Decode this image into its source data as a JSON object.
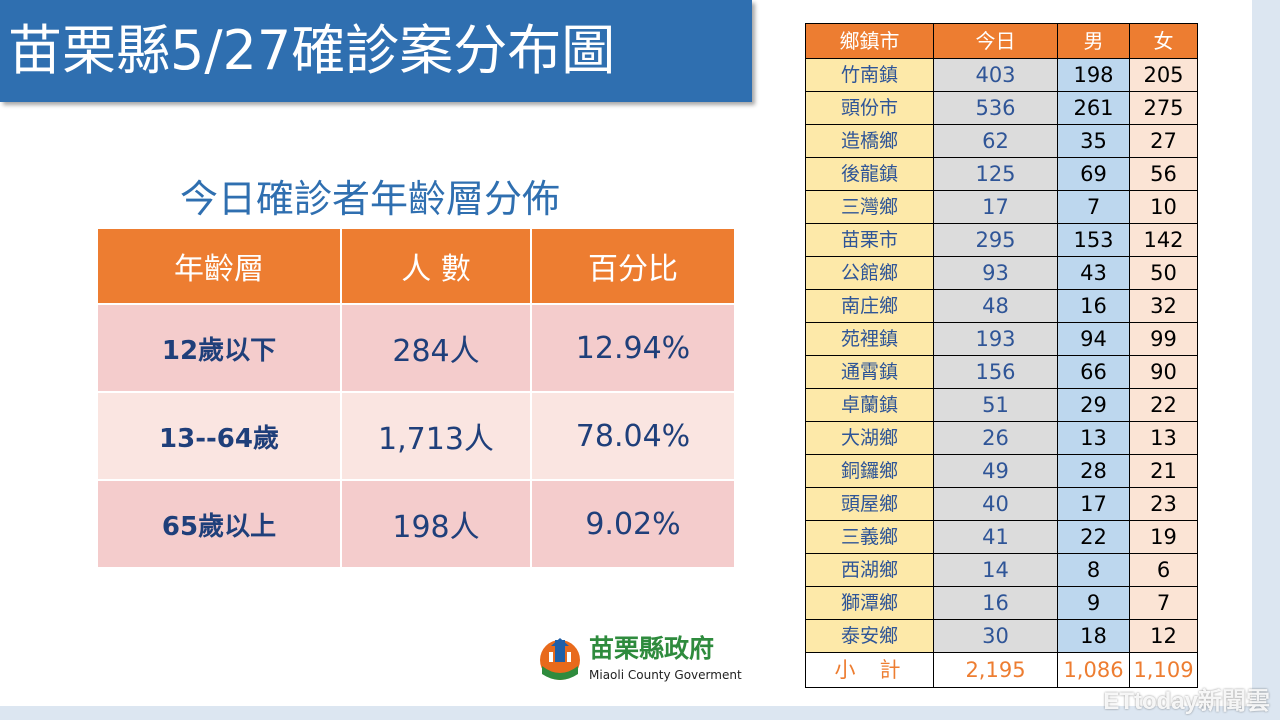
{
  "title": "苗栗縣5/27確診案分布圖",
  "age_section": {
    "heading": "今日確診者年齡層分佈",
    "headers": [
      "年齡層",
      "人 數",
      "百分比"
    ],
    "rows": [
      {
        "group": "12歲以下",
        "count": "284人",
        "percent": "12.94%"
      },
      {
        "group": "13--64歲",
        "count": "1,713人",
        "percent": "78.04%"
      },
      {
        "group": "65歲以上",
        "count": "198人",
        "percent": "9.02%"
      }
    ]
  },
  "town_table": {
    "headers": [
      "鄉鎮市",
      "今日",
      "男",
      "女"
    ],
    "rows": [
      {
        "town": "竹南鎮",
        "today": "403",
        "male": "198",
        "female": "205"
      },
      {
        "town": "頭份市",
        "today": "536",
        "male": "261",
        "female": "275"
      },
      {
        "town": "造橋鄉",
        "today": "62",
        "male": "35",
        "female": "27"
      },
      {
        "town": "後龍鎮",
        "today": "125",
        "male": "69",
        "female": "56"
      },
      {
        "town": "三灣鄉",
        "today": "17",
        "male": "7",
        "female": "10"
      },
      {
        "town": "苗栗市",
        "today": "295",
        "male": "153",
        "female": "142"
      },
      {
        "town": "公館鄉",
        "today": "93",
        "male": "43",
        "female": "50"
      },
      {
        "town": "南庄鄉",
        "today": "48",
        "male": "16",
        "female": "32"
      },
      {
        "town": "苑裡鎮",
        "today": "193",
        "male": "94",
        "female": "99"
      },
      {
        "town": "通霄鎮",
        "today": "156",
        "male": "66",
        "female": "90"
      },
      {
        "town": "卓蘭鎮",
        "today": "51",
        "male": "29",
        "female": "22"
      },
      {
        "town": "大湖鄉",
        "today": "26",
        "male": "13",
        "female": "13"
      },
      {
        "town": "銅鑼鄉",
        "today": "49",
        "male": "28",
        "female": "21"
      },
      {
        "town": "頭屋鄉",
        "today": "40",
        "male": "17",
        "female": "23"
      },
      {
        "town": "三義鄉",
        "today": "41",
        "male": "22",
        "female": "19"
      },
      {
        "town": "西湖鄉",
        "today": "14",
        "male": "8",
        "female": "6"
      },
      {
        "town": "獅潭鄉",
        "today": "16",
        "male": "9",
        "female": "7"
      },
      {
        "town": "泰安鄉",
        "today": "30",
        "male": "18",
        "female": "12"
      }
    ],
    "total": {
      "label": "小計",
      "today": "2,195",
      "male": "1,086",
      "female": "1,109"
    }
  },
  "logo": {
    "name": "苗栗縣政府",
    "subtitle": "Miaoli County Goverment"
  },
  "watermark": "ETtoday新聞雲",
  "colors": {
    "title_bar": "#2f6fb0",
    "header": "#ed7d31",
    "accent_text": "#2f5597"
  }
}
